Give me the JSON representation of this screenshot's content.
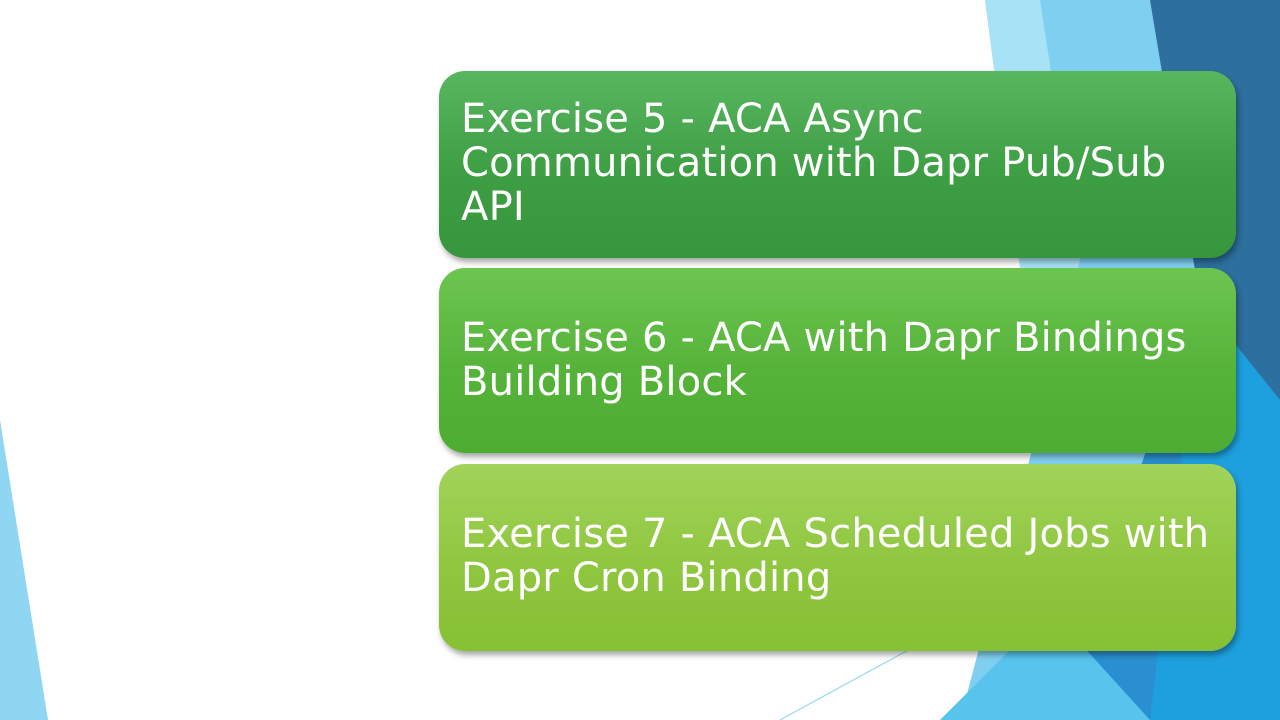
{
  "colors": {
    "card_1": "#3e9e44",
    "card_2": "#56b33a",
    "card_3": "#8fc63f",
    "accent_dark_blue": "#2d6f9e",
    "accent_light_blue": "#8fd6f2"
  },
  "exercises": [
    {
      "label": "Exercise 5 - ACA Async Communication with Dapr Pub/Sub API"
    },
    {
      "label": "Exercise 6 - ACA with Dapr Bindings Building Block"
    },
    {
      "label": "Exercise 7 - ACA Scheduled Jobs with Dapr Cron Binding"
    }
  ]
}
